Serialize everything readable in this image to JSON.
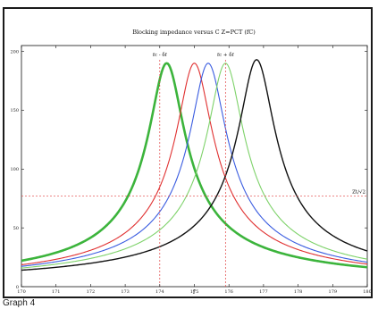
{
  "caption": "Graph 4",
  "chart_data": {
    "type": "line",
    "title": "Blocking impedance versus C  Z=PCT (fC)",
    "xlabel": "f",
    "ylabel": "",
    "xlim": [
      170,
      180
    ],
    "ylim": [
      0,
      205
    ],
    "xticks": [
      170,
      171,
      172,
      173,
      174,
      175,
      176,
      177,
      178,
      179,
      180
    ],
    "yticks": [
      0,
      50,
      100,
      150,
      200
    ],
    "ytick_labels": [
      "0",
      "50",
      "100",
      "150",
      "200"
    ],
    "grid": false,
    "curves": [
      {
        "f0": 174.2,
        "peak": 190,
        "q": 175,
        "color": "#3cb43c",
        "width": 2.6
      },
      {
        "f0": 175.0,
        "peak": 190,
        "q": 175,
        "color": "#e03030",
        "width": 1.1
      },
      {
        "f0": 175.4,
        "peak": 190,
        "q": 175,
        "color": "#3a5ce0",
        "width": 1.1
      },
      {
        "f0": 175.9,
        "peak": 190,
        "q": 175,
        "color": "#7ed26a",
        "width": 1.1
      },
      {
        "f0": 176.8,
        "peak": 193,
        "q": 175,
        "color": "#111111",
        "width": 1.4
      }
    ],
    "markers": {
      "vlines": [
        {
          "x": 174.0,
          "label": "fc - δf"
        },
        {
          "x": 175.9,
          "label": "fc + δf"
        }
      ],
      "hline": {
        "y": 77,
        "label": "Zt/√2"
      },
      "color": "#e04040"
    }
  }
}
